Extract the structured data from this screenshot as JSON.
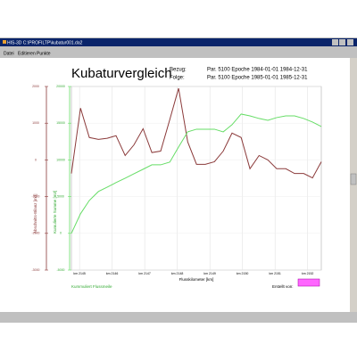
{
  "window": {
    "title": "HIS-3D C:\\PROFILTP\\kubatur001.da2",
    "menu": [
      "Datei",
      "Editieren",
      "Punkte"
    ]
  },
  "chart_data": {
    "type": "line",
    "title": "Kubaturvergleich",
    "reference_label": "Bezug:",
    "reference": "Par. 5100  Epoche 1984-01-01 1984-12-31",
    "comparison_label": "Folge:",
    "comparison": "Par. 5100  Epoche 1985-01-01 1985-12-31",
    "x_label": "Flusskilometer [km]",
    "y_label": "Abschnitts-Bilanz [m3]",
    "y2_label": "Kumulierte Summe [m3]",
    "footer_left": "Kummuliert Flussmeile",
    "footer_right": "Erstellt von:",
    "x": [
      2144.75,
      2145.03,
      2145.3,
      2145.58,
      2145.85,
      2146.12,
      2146.4,
      2146.67,
      2146.95,
      2147.22,
      2147.49,
      2147.77,
      2148.04,
      2148.32,
      2148.59,
      2148.86,
      2149.14,
      2149.41,
      2149.68,
      2149.96,
      2150.23,
      2150.51,
      2150.78,
      2151.05,
      2151.33,
      2151.6,
      2151.88,
      2152.15,
      2152.42
    ],
    "series": [
      {
        "color": "#8b3a3a",
        "values": [
          -370,
          1410,
          610,
          560,
          590,
          660,
          120,
          410,
          850,
          200,
          240,
          1100,
          1950,
          490,
          -120,
          -120,
          -50,
          240,
          730,
          610,
          -240,
          120,
          0,
          -240,
          -240,
          -370,
          -370,
          -490,
          -50
        ]
      },
      {
        "color": "#66dd66",
        "axis": "y2",
        "values": [
          0,
          2670,
          4480,
          5700,
          6300,
          6910,
          7510,
          8120,
          8730,
          9330,
          9330,
          9700,
          11760,
          13820,
          14180,
          14180,
          14180,
          13820,
          14790,
          16240,
          16000,
          15640,
          15390,
          15760,
          16000,
          16000,
          15640,
          15150,
          14550
        ]
      }
    ],
    "xlim": [
      2144.75,
      2152.42
    ],
    "xticks": [
      {
        "value": 2145,
        "label": "km 2145"
      },
      {
        "value": 2146,
        "label": "km 2146"
      },
      {
        "value": 2147,
        "label": "km 2147"
      },
      {
        "value": 2148,
        "label": "km 2148"
      },
      {
        "value": 2149,
        "label": "km 2149"
      },
      {
        "value": 2150,
        "label": "km 2150"
      },
      {
        "value": 2151,
        "label": "km 2151"
      },
      {
        "value": 2152,
        "label": "km 2152"
      }
    ],
    "ylim": [
      -3000,
      2000
    ],
    "yticks": [
      -3000,
      -2000,
      -1000,
      0,
      1000,
      2000
    ],
    "y2lim": [
      -5000,
      20000
    ],
    "y2ticks": [
      -5000,
      0,
      5000,
      10000,
      15000,
      20000
    ],
    "grid": true
  }
}
